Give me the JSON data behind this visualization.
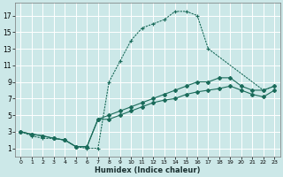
{
  "xlabel": "Humidex (Indice chaleur)",
  "bg_color": "#cce8e8",
  "grid_color": "#b0d0d0",
  "line_color": "#1a6b5a",
  "xlim": [
    -0.5,
    23.5
  ],
  "ylim": [
    0,
    18.5
  ],
  "xticks": [
    0,
    1,
    2,
    3,
    4,
    5,
    6,
    7,
    8,
    9,
    10,
    11,
    12,
    13,
    14,
    15,
    16,
    17,
    18,
    19,
    20,
    21,
    22,
    23
  ],
  "yticks": [
    1,
    3,
    5,
    7,
    9,
    11,
    13,
    15,
    17
  ],
  "series": [
    {
      "x": [
        0,
        1,
        2,
        3,
        4,
        5,
        6,
        7,
        8,
        9,
        10,
        11,
        12,
        13,
        14,
        15,
        16,
        17,
        22,
        23
      ],
      "y": [
        3,
        2.5,
        2.2,
        2.2,
        2,
        1.2,
        1,
        1,
        9,
        11.5,
        14,
        15.5,
        16,
        16.5,
        17.5,
        17.5,
        17,
        13,
        8,
        8.5
      ],
      "linestyle": "--",
      "marker": "+"
    },
    {
      "x": [
        0,
        1,
        2,
        3,
        4,
        5,
        6,
        7,
        8,
        9,
        10,
        11,
        12,
        13,
        14,
        15,
        16,
        17,
        18,
        19,
        20,
        21,
        22,
        23
      ],
      "y": [
        3,
        2.7,
        2.5,
        2.2,
        2,
        1.2,
        1.2,
        4.5,
        5,
        5.5,
        6,
        6.5,
        7,
        7.5,
        8,
        8.5,
        9,
        9,
        9.5,
        9.5,
        8.5,
        8,
        8,
        8.5
      ],
      "linestyle": "-",
      "marker": "D"
    },
    {
      "x": [
        0,
        1,
        2,
        3,
        4,
        5,
        6,
        7,
        8,
        9,
        10,
        11,
        12,
        13,
        14,
        15,
        16,
        17,
        18,
        19,
        20,
        21,
        22,
        23
      ],
      "y": [
        3,
        2.7,
        2.5,
        2.2,
        2,
        1.2,
        1.2,
        4.5,
        4.5,
        5,
        5.5,
        6,
        6.5,
        6.8,
        7,
        7.5,
        7.8,
        8,
        8.2,
        8.5,
        8,
        7.5,
        7.2,
        8
      ],
      "linestyle": "-",
      "marker": "D"
    }
  ]
}
